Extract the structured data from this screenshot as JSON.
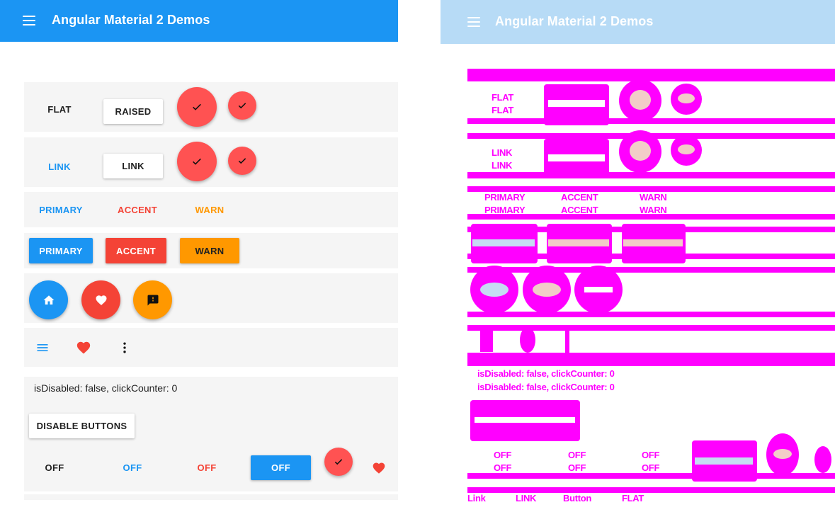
{
  "app": {
    "title": "Angular Material 2 Demos",
    "colors": {
      "toolbar": "#1b95f3",
      "toolbar_faded": "#b7dbf6",
      "primary": "#1b95f3",
      "accent": "#f44336",
      "warn": "#ff9800",
      "fab_red": "#ff5252",
      "row_bg": "#f5f5f5",
      "artifact_magenta": "#ff00ff"
    },
    "icons": {
      "menu": "menu-icon",
      "check": "check-icon",
      "home": "home-icon",
      "favorite": "heart-icon",
      "feedback": "feedback-icon",
      "more": "more-vert-icon"
    }
  },
  "rows": {
    "basic": {
      "flat": "FLAT",
      "raised": "RAISED"
    },
    "links": {
      "link_flat": "LINK",
      "link_raised": "LINK"
    },
    "colored_flat": {
      "primary": "PRIMARY",
      "accent": "ACCENT",
      "warn": "WARN"
    },
    "colored_raised": {
      "primary": "PRIMARY",
      "accent": "ACCENT",
      "warn": "WARN"
    }
  },
  "state": {
    "status": "isDisabled: false, clickCounter: 0",
    "disable_button": "DISABLE BUTTONS",
    "off_flat": "OFF",
    "off_primary": "OFF",
    "off_accent": "OFF",
    "off_raised": "OFF"
  },
  "right_panel": {
    "title": "Angular Material 2 Demos",
    "flat_a": "FLAT",
    "flat_b": "FLAT",
    "link_a": "LINK",
    "link_b": "LINK",
    "primary_a": "PRIMARY",
    "primary_b": "PRIMARY",
    "accent_a": "ACCENT",
    "accent_b": "ACCENT",
    "warn_a": "WARN",
    "warn_b": "WARN",
    "status_a": "isDisabled: false, clickCounter: 0",
    "status_b": "isDisabled: false, clickCounter: 0",
    "off_1a": "OFF",
    "off_1b": "OFF",
    "off_2a": "OFF",
    "off_2b": "OFF",
    "off_3a": "OFF",
    "off_3b": "OFF",
    "bottom_1": "Link",
    "bottom_2": "LINK",
    "bottom_3": "Button",
    "bottom_4": "FLAT"
  }
}
